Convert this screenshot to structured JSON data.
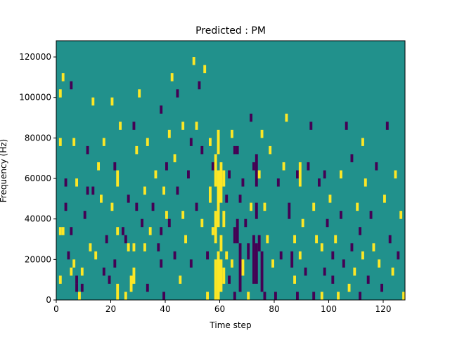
{
  "chart_data": {
    "type": "heatmap",
    "title": "Predicted : PM",
    "xlabel": "Time step",
    "ylabel": "Frequency (Hz)",
    "xlim": [
      0,
      128
    ],
    "ylim": [
      0,
      128000
    ],
    "x_ticks": [
      0,
      20,
      40,
      60,
      80,
      100,
      120
    ],
    "x_tick_labels": [
      "0",
      "20",
      "40",
      "60",
      "80",
      "100",
      "120"
    ],
    "y_ticks": [
      0,
      20000,
      40000,
      60000,
      80000,
      100000,
      120000
    ],
    "y_tick_labels": [
      "0",
      "20000",
      "40000",
      "60000",
      "80000",
      "100000",
      "120000"
    ],
    "grid": false,
    "legend": "none",
    "colors": {
      "background_class": "#21918c",
      "high_class": "#fde725",
      "low_class": "#440154"
    },
    "bin_height_hz": 4000,
    "cells_note": "each cell: [time_step_start, time_step_end, freq_start_hz, freq_end_hz, class]",
    "cells": [
      [
        1,
        2,
        32000,
        36000,
        "high"
      ],
      [
        2,
        3,
        32000,
        36000,
        "high"
      ],
      [
        1,
        2,
        100000,
        104000,
        "high"
      ],
      [
        1,
        2,
        76000,
        80000,
        "high"
      ],
      [
        1,
        2,
        8000,
        12000,
        "high"
      ],
      [
        2,
        3,
        108000,
        112000,
        "high"
      ],
      [
        3,
        4,
        56000,
        60000,
        "low"
      ],
      [
        3,
        4,
        44000,
        48000,
        "low"
      ],
      [
        4,
        5,
        20000,
        24000,
        "low"
      ],
      [
        5,
        6,
        104000,
        108000,
        "low"
      ],
      [
        5,
        6,
        32000,
        36000,
        "low"
      ],
      [
        5,
        6,
        12000,
        16000,
        "high"
      ],
      [
        6,
        7,
        16000,
        20000,
        "high"
      ],
      [
        6,
        7,
        76000,
        80000,
        "high"
      ],
      [
        7,
        8,
        56000,
        60000,
        "high"
      ],
      [
        7,
        8,
        8000,
        12000,
        "low"
      ],
      [
        7,
        8,
        4000,
        8000,
        "low"
      ],
      [
        8,
        9,
        0,
        4000,
        "high"
      ],
      [
        9,
        10,
        12000,
        16000,
        "high"
      ],
      [
        9,
        10,
        4000,
        8000,
        "low"
      ],
      [
        10,
        11,
        40000,
        44000,
        "low"
      ],
      [
        11,
        12,
        52000,
        56000,
        "low"
      ],
      [
        11,
        12,
        72000,
        76000,
        "low"
      ],
      [
        12,
        13,
        24000,
        28000,
        "high"
      ],
      [
        13,
        14,
        96000,
        100000,
        "high"
      ],
      [
        13,
        14,
        52000,
        56000,
        "low"
      ],
      [
        14,
        15,
        20000,
        24000,
        "high"
      ],
      [
        15,
        16,
        64000,
        68000,
        "high"
      ],
      [
        16,
        17,
        48000,
        52000,
        "high"
      ],
      [
        17,
        18,
        12000,
        16000,
        "low"
      ],
      [
        17,
        18,
        76000,
        80000,
        "high"
      ],
      [
        18,
        19,
        28000,
        32000,
        "low"
      ],
      [
        19,
        20,
        8000,
        12000,
        "low"
      ],
      [
        20,
        21,
        44000,
        48000,
        "high"
      ],
      [
        20,
        21,
        96000,
        100000,
        "high"
      ],
      [
        21,
        22,
        16000,
        20000,
        "low"
      ],
      [
        21,
        22,
        64000,
        68000,
        "low"
      ],
      [
        22,
        23,
        0,
        4000,
        "high"
      ],
      [
        22,
        23,
        4000,
        8000,
        "high"
      ],
      [
        22,
        23,
        32000,
        36000,
        "high"
      ],
      [
        22,
        23,
        56000,
        64000,
        "high"
      ],
      [
        23,
        24,
        84000,
        88000,
        "high"
      ],
      [
        24,
        25,
        32000,
        36000,
        "low"
      ],
      [
        25,
        26,
        0,
        4000,
        "high"
      ],
      [
        25,
        26,
        28000,
        32000,
        "low"
      ],
      [
        26,
        27,
        24000,
        28000,
        "high"
      ],
      [
        26,
        27,
        48000,
        52000,
        "low"
      ],
      [
        27,
        28,
        4000,
        12000,
        "high"
      ],
      [
        28,
        29,
        8000,
        16000,
        "high"
      ],
      [
        28,
        29,
        24000,
        28000,
        "high"
      ],
      [
        28,
        29,
        84000,
        88000,
        "low"
      ],
      [
        29,
        30,
        44000,
        48000,
        "low"
      ],
      [
        29,
        30,
        72000,
        76000,
        "high"
      ],
      [
        30,
        31,
        100000,
        104000,
        "high"
      ],
      [
        31,
        32,
        36000,
        40000,
        "low"
      ],
      [
        32,
        33,
        24000,
        28000,
        "high"
      ],
      [
        32,
        33,
        52000,
        56000,
        "high"
      ],
      [
        33,
        34,
        4000,
        8000,
        "low"
      ],
      [
        33,
        34,
        76000,
        80000,
        "high"
      ],
      [
        34,
        35,
        32000,
        36000,
        "high"
      ],
      [
        35,
        36,
        44000,
        48000,
        "low"
      ],
      [
        36,
        37,
        60000,
        64000,
        "high"
      ],
      [
        37,
        38,
        24000,
        28000,
        "low"
      ],
      [
        38,
        39,
        16000,
        20000,
        "low"
      ],
      [
        38,
        39,
        32000,
        36000,
        "low"
      ],
      [
        38,
        39,
        92000,
        96000,
        "low"
      ],
      [
        39,
        40,
        0,
        4000,
        "low"
      ],
      [
        39,
        40,
        52000,
        56000,
        "high"
      ],
      [
        40,
        41,
        40000,
        44000,
        "high"
      ],
      [
        40,
        41,
        64000,
        68000,
        "low"
      ],
      [
        41,
        42,
        36000,
        40000,
        "low"
      ],
      [
        41,
        42,
        80000,
        84000,
        "high"
      ],
      [
        42,
        43,
        108000,
        112000,
        "high"
      ],
      [
        43,
        44,
        20000,
        24000,
        "low"
      ],
      [
        43,
        44,
        68000,
        72000,
        "high"
      ],
      [
        44,
        45,
        52000,
        56000,
        "low"
      ],
      [
        44,
        45,
        100000,
        104000,
        "low"
      ],
      [
        45,
        46,
        8000,
        12000,
        "high"
      ],
      [
        46,
        47,
        40000,
        44000,
        "high"
      ],
      [
        46,
        47,
        84000,
        88000,
        "high"
      ],
      [
        47,
        48,
        28000,
        32000,
        "high"
      ],
      [
        48,
        49,
        60000,
        64000,
        "low"
      ],
      [
        49,
        50,
        16000,
        20000,
        "low"
      ],
      [
        49,
        50,
        76000,
        80000,
        "low"
      ],
      [
        50,
        51,
        116000,
        120000,
        "high"
      ],
      [
        51,
        52,
        44000,
        48000,
        "low"
      ],
      [
        51,
        52,
        84000,
        88000,
        "high"
      ],
      [
        52,
        53,
        104000,
        108000,
        "low"
      ],
      [
        53,
        54,
        36000,
        40000,
        "high"
      ],
      [
        53,
        54,
        72000,
        76000,
        "low"
      ],
      [
        54,
        55,
        112000,
        116000,
        "high"
      ],
      [
        55,
        56,
        0,
        4000,
        "high"
      ],
      [
        55,
        56,
        20000,
        24000,
        "low"
      ],
      [
        56,
        57,
        48000,
        56000,
        "high"
      ],
      [
        56,
        57,
        76000,
        80000,
        "high"
      ],
      [
        57,
        58,
        64000,
        68000,
        "low"
      ],
      [
        57,
        58,
        32000,
        36000,
        "high"
      ],
      [
        58,
        59,
        0,
        20000,
        "high"
      ],
      [
        58,
        59,
        28000,
        44000,
        "high"
      ],
      [
        58,
        59,
        56000,
        72000,
        "high"
      ],
      [
        59,
        60,
        0,
        24000,
        "high"
      ],
      [
        59,
        60,
        36000,
        64000,
        "high"
      ],
      [
        59,
        60,
        72000,
        84000,
        "high"
      ],
      [
        60,
        61,
        4000,
        20000,
        "high"
      ],
      [
        60,
        61,
        24000,
        32000,
        "high"
      ],
      [
        60,
        61,
        48000,
        68000,
        "high"
      ],
      [
        61,
        62,
        8000,
        16000,
        "high"
      ],
      [
        61,
        62,
        36000,
        44000,
        "high"
      ],
      [
        61,
        62,
        56000,
        64000,
        "high"
      ],
      [
        62,
        63,
        20000,
        24000,
        "high"
      ],
      [
        62,
        63,
        48000,
        52000,
        "low"
      ],
      [
        63,
        64,
        8000,
        12000,
        "low"
      ],
      [
        63,
        64,
        60000,
        64000,
        "low"
      ],
      [
        64,
        65,
        16000,
        20000,
        "high"
      ],
      [
        64,
        65,
        80000,
        84000,
        "high"
      ],
      [
        65,
        66,
        0,
        4000,
        "low"
      ],
      [
        65,
        66,
        28000,
        36000,
        "low"
      ],
      [
        65,
        66,
        72000,
        76000,
        "low"
      ],
      [
        66,
        67,
        28000,
        40000,
        "low"
      ],
      [
        66,
        67,
        72000,
        76000,
        "low"
      ],
      [
        67,
        68,
        4000,
        28000,
        "low"
      ],
      [
        67,
        68,
        48000,
        52000,
        "low"
      ],
      [
        68,
        69,
        12000,
        20000,
        "high"
      ],
      [
        68,
        69,
        56000,
        60000,
        "low"
      ],
      [
        69,
        70,
        36000,
        40000,
        "low"
      ],
      [
        70,
        71,
        0,
        4000,
        "high"
      ],
      [
        70,
        71,
        20000,
        28000,
        "low"
      ],
      [
        71,
        72,
        44000,
        48000,
        "high"
      ],
      [
        71,
        72,
        88000,
        92000,
        "low"
      ],
      [
        72,
        73,
        8000,
        32000,
        "low"
      ],
      [
        72,
        73,
        64000,
        68000,
        "low"
      ],
      [
        73,
        74,
        8000,
        28000,
        "low"
      ],
      [
        73,
        74,
        40000,
        48000,
        "low"
      ],
      [
        73,
        74,
        56000,
        72000,
        "low"
      ],
      [
        74,
        75,
        24000,
        32000,
        "low"
      ],
      [
        74,
        75,
        60000,
        64000,
        "high"
      ],
      [
        75,
        76,
        4000,
        24000,
        "low"
      ],
      [
        75,
        76,
        80000,
        84000,
        "high"
      ],
      [
        76,
        77,
        0,
        4000,
        "low"
      ],
      [
        76,
        77,
        44000,
        48000,
        "high"
      ],
      [
        77,
        78,
        28000,
        32000,
        "high"
      ],
      [
        78,
        79,
        72000,
        76000,
        "high"
      ],
      [
        79,
        80,
        16000,
        20000,
        "high"
      ],
      [
        80,
        81,
        0,
        4000,
        "low"
      ],
      [
        81,
        82,
        56000,
        60000,
        "low"
      ],
      [
        82,
        83,
        20000,
        24000,
        "low"
      ],
      [
        83,
        84,
        64000,
        68000,
        "high"
      ],
      [
        84,
        85,
        88000,
        92000,
        "high"
      ],
      [
        85,
        86,
        40000,
        48000,
        "low"
      ],
      [
        86,
        87,
        16000,
        24000,
        "low"
      ],
      [
        87,
        88,
        8000,
        12000,
        "high"
      ],
      [
        87,
        88,
        28000,
        32000,
        "high"
      ],
      [
        88,
        89,
        0,
        4000,
        "low"
      ],
      [
        88,
        89,
        60000,
        64000,
        "low"
      ],
      [
        89,
        90,
        20000,
        24000,
        "high"
      ],
      [
        89,
        90,
        56000,
        68000,
        "high"
      ],
      [
        90,
        91,
        36000,
        40000,
        "high"
      ],
      [
        91,
        92,
        12000,
        16000,
        "low"
      ],
      [
        92,
        93,
        64000,
        68000,
        "low"
      ],
      [
        93,
        94,
        84000,
        88000,
        "low"
      ],
      [
        94,
        95,
        0,
        4000,
        "low"
      ],
      [
        94,
        95,
        44000,
        48000,
        "high"
      ],
      [
        95,
        96,
        28000,
        32000,
        "high"
      ],
      [
        96,
        97,
        56000,
        60000,
        "low"
      ],
      [
        97,
        98,
        0,
        4000,
        "high"
      ],
      [
        97,
        98,
        24000,
        28000,
        "high"
      ],
      [
        98,
        99,
        12000,
        16000,
        "low"
      ],
      [
        98,
        99,
        60000,
        64000,
        "low"
      ],
      [
        99,
        100,
        36000,
        40000,
        "low"
      ],
      [
        100,
        101,
        48000,
        52000,
        "high"
      ],
      [
        101,
        102,
        8000,
        12000,
        "low"
      ],
      [
        101,
        102,
        20000,
        24000,
        "low"
      ],
      [
        102,
        103,
        28000,
        32000,
        "high"
      ],
      [
        103,
        104,
        0,
        4000,
        "high"
      ],
      [
        104,
        105,
        40000,
        44000,
        "low"
      ],
      [
        104,
        105,
        60000,
        64000,
        "high"
      ],
      [
        105,
        106,
        16000,
        20000,
        "low"
      ],
      [
        106,
        107,
        84000,
        88000,
        "low"
      ],
      [
        107,
        108,
        4000,
        8000,
        "high"
      ],
      [
        108,
        109,
        24000,
        28000,
        "low"
      ],
      [
        108,
        109,
        68000,
        72000,
        "low"
      ],
      [
        109,
        110,
        12000,
        16000,
        "high"
      ],
      [
        110,
        111,
        44000,
        48000,
        "high"
      ],
      [
        111,
        112,
        0,
        4000,
        "low"
      ],
      [
        111,
        112,
        32000,
        36000,
        "low"
      ],
      [
        112,
        113,
        20000,
        24000,
        "high"
      ],
      [
        112,
        113,
        76000,
        80000,
        "high"
      ],
      [
        113,
        114,
        56000,
        60000,
        "high"
      ],
      [
        114,
        115,
        8000,
        12000,
        "low"
      ],
      [
        115,
        116,
        40000,
        44000,
        "low"
      ],
      [
        116,
        117,
        24000,
        28000,
        "high"
      ],
      [
        117,
        118,
        64000,
        68000,
        "low"
      ],
      [
        118,
        119,
        16000,
        20000,
        "high"
      ],
      [
        119,
        120,
        4000,
        8000,
        "low"
      ],
      [
        120,
        121,
        48000,
        52000,
        "high"
      ],
      [
        121,
        122,
        84000,
        88000,
        "low"
      ],
      [
        122,
        123,
        28000,
        32000,
        "low"
      ],
      [
        123,
        124,
        12000,
        16000,
        "high"
      ],
      [
        124,
        125,
        60000,
        64000,
        "high"
      ],
      [
        125,
        126,
        20000,
        24000,
        "low"
      ],
      [
        126,
        127,
        40000,
        44000,
        "high"
      ],
      [
        127,
        128,
        0,
        4000,
        "high"
      ]
    ]
  }
}
